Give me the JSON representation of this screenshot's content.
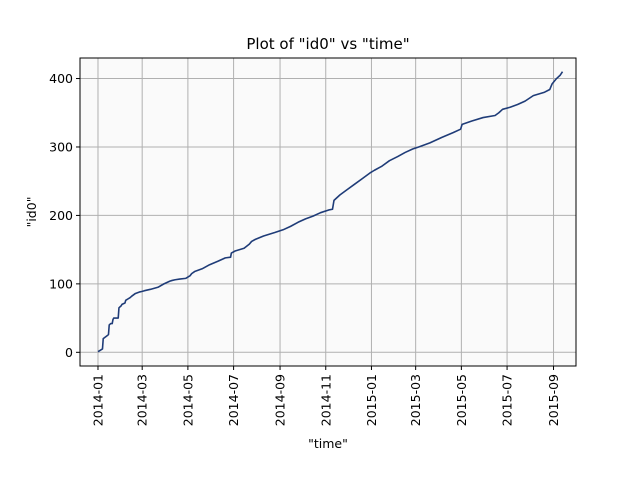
{
  "chart_data": {
    "type": "line",
    "title": "Plot of \"id0\" vs \"time\"",
    "xlabel": "\"time\"",
    "ylabel": "\"id0\"",
    "grid": true,
    "xlim": [
      "2013-12-08",
      "2015-10-01"
    ],
    "ylim": [
      -20,
      430
    ],
    "x_ticks": [
      "2014-01-01",
      "2014-03-01",
      "2014-05-01",
      "2014-07-01",
      "2014-09-01",
      "2014-11-01",
      "2015-01-01",
      "2015-03-01",
      "2015-05-01",
      "2015-07-01",
      "2015-09-01"
    ],
    "x_tick_labels": [
      "2014-01",
      "2014-03",
      "2014-05",
      "2014-07",
      "2014-09",
      "2014-11",
      "2015-01",
      "2015-03",
      "2015-05",
      "2015-07",
      "2015-09"
    ],
    "y_ticks": [
      0,
      100,
      200,
      300,
      400
    ],
    "y_tick_labels": [
      "0",
      "100",
      "200",
      "300",
      "400"
    ],
    "colors": {
      "line": "#1f3c78",
      "plot_bg": "#fafafa",
      "grid": "#b0b0b0",
      "frame": "#000000"
    },
    "series": [
      {
        "x": [
          "2014-01-01",
          "2014-01-04",
          "2014-01-07",
          "2014-01-08",
          "2014-01-14",
          "2014-01-15",
          "2014-01-16",
          "2014-01-18",
          "2014-01-20",
          "2014-01-21",
          "2014-01-22",
          "2014-01-28",
          "2014-01-29",
          "2014-02-01",
          "2014-02-02",
          "2014-02-06",
          "2014-02-07",
          "2014-02-13",
          "2014-02-15",
          "2014-02-20",
          "2014-02-25",
          "2014-03-01",
          "2014-03-04",
          "2014-03-12",
          "2014-03-22",
          "2014-03-30",
          "2014-04-07",
          "2014-04-10",
          "2014-04-14",
          "2014-04-20",
          "2014-04-28",
          "2014-05-04",
          "2014-05-06",
          "2014-05-10",
          "2014-05-20",
          "2014-05-30",
          "2014-06-10",
          "2014-06-20",
          "2014-06-27",
          "2014-06-28",
          "2014-07-03",
          "2014-07-15",
          "2014-07-22",
          "2014-07-25",
          "2014-07-30",
          "2014-08-10",
          "2014-08-25",
          "2014-09-05",
          "2014-09-15",
          "2014-09-25",
          "2014-10-05",
          "2014-10-15",
          "2014-10-25",
          "2014-11-05",
          "2014-11-10",
          "2014-11-12",
          "2014-11-20",
          "2014-11-30",
          "2014-12-10",
          "2014-12-20",
          "2014-12-30",
          "2015-01-05",
          "2015-01-15",
          "2015-01-25",
          "2015-02-05",
          "2015-02-15",
          "2015-02-25",
          "2015-03-05",
          "2015-03-20",
          "2015-04-05",
          "2015-04-20",
          "2015-04-30",
          "2015-05-02",
          "2015-05-15",
          "2015-05-30",
          "2015-06-15",
          "2015-06-20",
          "2015-06-25",
          "2015-07-05",
          "2015-07-15",
          "2015-07-25",
          "2015-08-05",
          "2015-08-20",
          "2015-08-27",
          "2015-08-30",
          "2015-09-05",
          "2015-09-10",
          "2015-09-13"
        ],
        "y": [
          1,
          3,
          5,
          20,
          25,
          26,
          40,
          42,
          42,
          48,
          50,
          50,
          65,
          68,
          70,
          72,
          76,
          80,
          82,
          86,
          88,
          89,
          90,
          92,
          95,
          100,
          104,
          105,
          106,
          107,
          108,
          112,
          115,
          118,
          122,
          128,
          133,
          138,
          139,
          145,
          148,
          152,
          158,
          162,
          165,
          170,
          175,
          179,
          184,
          190,
          195,
          199,
          204,
          208,
          209,
          222,
          230,
          238,
          246,
          254,
          262,
          266,
          272,
          280,
          286,
          292,
          297,
          300,
          306,
          314,
          321,
          326,
          333,
          338,
          343,
          346,
          350,
          355,
          358,
          362,
          367,
          375,
          380,
          384,
          392,
          400,
          405,
          410
        ]
      }
    ]
  }
}
